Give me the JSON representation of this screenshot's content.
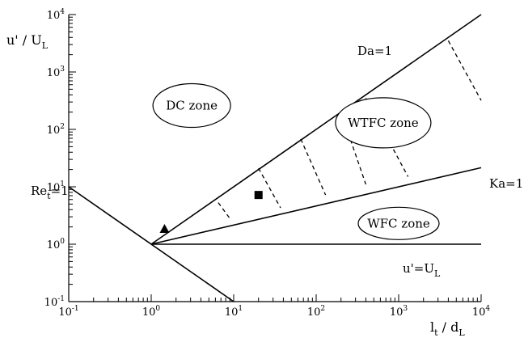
{
  "chart_data": {
    "type": "diagram",
    "scale": "log-log",
    "xlim": [
      0.1,
      10000
    ],
    "ylim": [
      0.1,
      10000
    ],
    "xlabel": {
      "base": "l",
      "base_sub": "t",
      "sep": " / ",
      "denom": "d",
      "denom_sub": "L"
    },
    "ylabel": {
      "num": "u' / U",
      "num_sub": "L"
    },
    "x_ticks": [
      {
        "value": 0.1,
        "base": "10",
        "exp": "-1"
      },
      {
        "value": 1,
        "base": "10",
        "exp": "0"
      },
      {
        "value": 10,
        "base": "10",
        "exp": "1"
      },
      {
        "value": 100,
        "base": "10",
        "exp": "2"
      },
      {
        "value": 1000,
        "base": "10",
        "exp": "3"
      },
      {
        "value": 10000,
        "base": "10",
        "exp": "4"
      }
    ],
    "y_ticks": [
      {
        "value": 0.1,
        "base": "10",
        "exp": "-1"
      },
      {
        "value": 1,
        "base": "10",
        "exp": "0"
      },
      {
        "value": 10,
        "base": "10",
        "exp": "1"
      },
      {
        "value": 100,
        "base": "10",
        "exp": "2"
      },
      {
        "value": 1000,
        "base": "10",
        "exp": "3"
      },
      {
        "value": 10000,
        "base": "10",
        "exp": "4"
      }
    ],
    "lines": [
      {
        "id": "re-line",
        "from": [
          0.1,
          10
        ],
        "to": [
          10,
          0.1
        ]
      },
      {
        "id": "ul-line",
        "from": [
          1,
          1
        ],
        "to": [
          10000,
          1
        ]
      },
      {
        "id": "da-line",
        "from": [
          1,
          1
        ],
        "to": [
          10000,
          10000
        ]
      },
      {
        "id": "ka-line",
        "from": [
          1,
          1
        ],
        "to": [
          10000,
          21.5
        ]
      }
    ],
    "dashed_segments": [
      {
        "from": [
          6.5,
          5.3
        ],
        "to": [
          9,
          2.8
        ]
      },
      {
        "from": [
          20,
          21
        ],
        "to": [
          37,
          4.3
        ]
      },
      {
        "from": [
          65,
          68
        ],
        "to": [
          130,
          7.2
        ]
      },
      {
        "from": [
          200,
          200
        ],
        "to": [
          400,
          11
        ]
      },
      {
        "from": [
          400,
          350
        ],
        "to": [
          1300,
          15
        ]
      },
      {
        "from": [
          4000,
          3500
        ],
        "to": [
          10000,
          320
        ]
      }
    ],
    "markers": [
      {
        "shape": "triangle",
        "x": 1.45,
        "y": 1.85
      },
      {
        "shape": "square",
        "x": 20,
        "y": 7.2
      }
    ],
    "line_labels": [
      {
        "id": "re",
        "base": "Re",
        "sub": "t",
        "suffix": "=1",
        "x": 0.1,
        "y": 10
      },
      {
        "id": "da",
        "text": "Da=1",
        "x": 500,
        "y": 1300
      },
      {
        "id": "ka",
        "text": "Ka=1",
        "x": 13000,
        "y": 10
      },
      {
        "id": "ul",
        "base": "u'=U",
        "sub": "L",
        "x": 1000,
        "y": 0.65
      }
    ],
    "zones": [
      {
        "text": "DC zone",
        "x": 3.1,
        "y": 260,
        "rx": 48,
        "ry": 27
      },
      {
        "text": "WTFC zone",
        "x": 650,
        "y": 130,
        "rx": 59,
        "ry": 31
      },
      {
        "text": "WFC zone",
        "x": 1000,
        "y": 2.3,
        "rx": 50,
        "ry": 20
      }
    ]
  }
}
